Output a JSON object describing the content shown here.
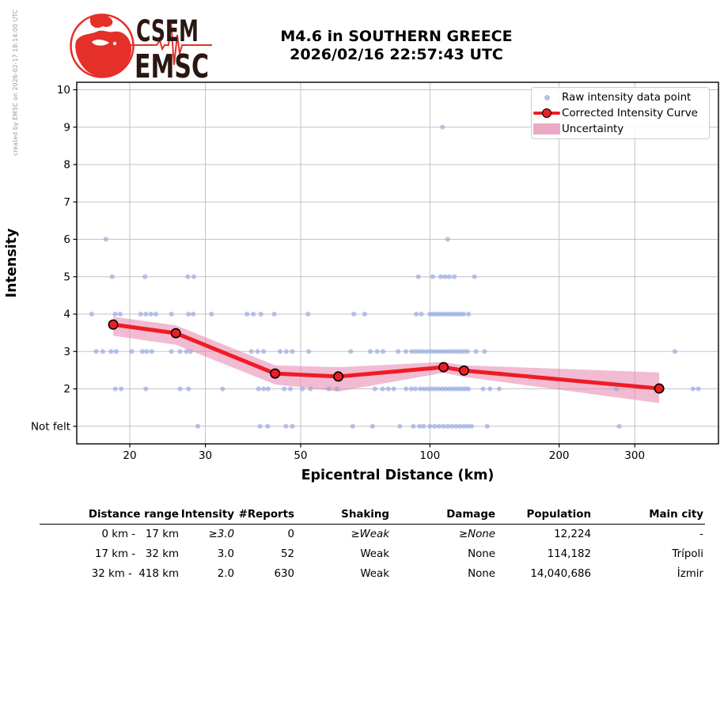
{
  "header": {
    "logo_line1": "CSEM",
    "logo_line2": "EMSC",
    "title_line1": "M4.6 in SOUTHERN GREECE",
    "title_line2": "2026/02/16 22:57:43 UTC",
    "credit": "created by EMSC on 2026-02-17 18:14:00 UTC"
  },
  "chart_data": {
    "type": "scatter",
    "title": "",
    "xlabel": "Epicentral Distance (km)",
    "ylabel": "Intensity",
    "x_scale": "log",
    "xlim": [
      15.05,
      470
    ],
    "ylim": [
      0.53,
      10.2
    ],
    "x_ticks": [
      20,
      30,
      50,
      100,
      200,
      300
    ],
    "y_ticks": [
      {
        "value": 10,
        "label": "10"
      },
      {
        "value": 9,
        "label": "9"
      },
      {
        "value": 8,
        "label": "8"
      },
      {
        "value": 7,
        "label": "7"
      },
      {
        "value": 6,
        "label": "6"
      },
      {
        "value": 5,
        "label": "5"
      },
      {
        "value": 4,
        "label": "4"
      },
      {
        "value": 3,
        "label": "3"
      },
      {
        "value": 2,
        "label": "2"
      },
      {
        "value": 1,
        "label": "Not felt"
      }
    ],
    "grid": true,
    "legend_position": "upper right",
    "legend": [
      "Raw intensity data point",
      "Corrected Intensity Curve",
      "Uncertainty"
    ],
    "raw_points": [
      {
        "intensity": 9,
        "distances_km": [
          107
        ]
      },
      {
        "intensity": 6,
        "distances_km": [
          17.6,
          110
        ]
      },
      {
        "intensity": 5,
        "distances_km": [
          18.2,
          21.7,
          27.3,
          28.2,
          94,
          101.5,
          106,
          108.5,
          111,
          114,
          127
        ]
      },
      {
        "intensity": 4,
        "distances_km": [
          16.3,
          18.5,
          19,
          21.2,
          21.8,
          22.4,
          23,
          25,
          27.4,
          28.1,
          31,
          37.5,
          38.8,
          40.4,
          43.4,
          52,
          66.5,
          70.5,
          93,
          95.5,
          100,
          101.7,
          103.4,
          105.1,
          106.9,
          108.7,
          110.5,
          112.3,
          114.1,
          116,
          117.9,
          119.8,
          123
        ]
      },
      {
        "intensity": 3,
        "distances_km": [
          16.7,
          17.3,
          18.1,
          18.6,
          20.2,
          21.4,
          21.9,
          22.5,
          25,
          26.2,
          27.1,
          27.7,
          38.4,
          39.7,
          41,
          44.8,
          46.3,
          47.8,
          52.2,
          65.4,
          72.7,
          75.4,
          77.8,
          84.3,
          87.9,
          90.7,
          92.6,
          94.5,
          96.4,
          98.4,
          100.4,
          102.4,
          104.5,
          106.6,
          108.7,
          110.9,
          113.1,
          115.4,
          117.7,
          120,
          122.4,
          128,
          134,
          372
        ]
      },
      {
        "intensity": 2,
        "distances_km": [
          18.5,
          19.1,
          21.8,
          26.2,
          27.4,
          32.9,
          39.9,
          41,
          42,
          45.8,
          47.3,
          50.5,
          52.7,
          58.1,
          60.8,
          74.5,
          77.6,
          80,
          82.4,
          88,
          90.5,
          92.5,
          95,
          97,
          99,
          101,
          103,
          105,
          107,
          109,
          111,
          113,
          115,
          117,
          119,
          121,
          123,
          133,
          138,
          145,
          272,
          410,
          422
        ]
      },
      {
        "intensity": 1,
        "distances_km": [
          28.8,
          40.2,
          41.9,
          46.2,
          47.8,
          66.1,
          73.5,
          85.1,
          91.5,
          94.6,
          96.7,
          100,
          102.5,
          105,
          107.5,
          110,
          112.5,
          115,
          117.5,
          120,
          122.5,
          125,
          136,
          276
        ]
      }
    ],
    "corrected_curve": [
      [
        18.3,
        3.72
      ],
      [
        25.6,
        3.49
      ],
      [
        43.6,
        2.41
      ],
      [
        61.2,
        2.33
      ],
      [
        107.6,
        2.58
      ],
      [
        120.1,
        2.49
      ],
      [
        342,
        2.01
      ]
    ],
    "uncertainty_band": [
      {
        "x": 18.3,
        "top": 3.93,
        "bottom": 3.42
      },
      {
        "x": 25.6,
        "top": 3.7,
        "bottom": 3.18
      },
      {
        "x": 43.6,
        "top": 2.63,
        "bottom": 2.12
      },
      {
        "x": 61.2,
        "top": 2.58,
        "bottom": 1.93
      },
      {
        "x": 107.6,
        "top": 2.72,
        "bottom": 2.43
      },
      {
        "x": 120.1,
        "top": 2.63,
        "bottom": 2.32
      },
      {
        "x": 342,
        "top": 2.44,
        "bottom": 1.62
      }
    ],
    "colors": {
      "raw_point": "#8fa3e0",
      "curve": "#ee1c24",
      "band": "#e583ac",
      "grid": "#c3c3c3",
      "logo_red": "#e5302a",
      "logo_text": "#2a1712"
    }
  },
  "table": {
    "headers": [
      "Distance range",
      "Intensity",
      "#Reports",
      "Shaking",
      "Damage",
      "Population",
      "Main city"
    ],
    "rows": [
      {
        "distance_range": "0 km -   17 km",
        "intensity": "≥3.0",
        "reports": "0",
        "shaking": "≥Weak",
        "damage": "≥None",
        "population": "12,224",
        "main_city": "-"
      },
      {
        "distance_range": "17 km -   32 km",
        "intensity": "3.0",
        "reports": "52",
        "shaking": "Weak",
        "damage": "None",
        "population": "114,182",
        "main_city": "Trípoli"
      },
      {
        "distance_range": "32 km -  418 km",
        "intensity": "2.0",
        "reports": "630",
        "shaking": "Weak",
        "damage": "None",
        "population": "14,040,686",
        "main_city": "İzmir"
      }
    ]
  }
}
